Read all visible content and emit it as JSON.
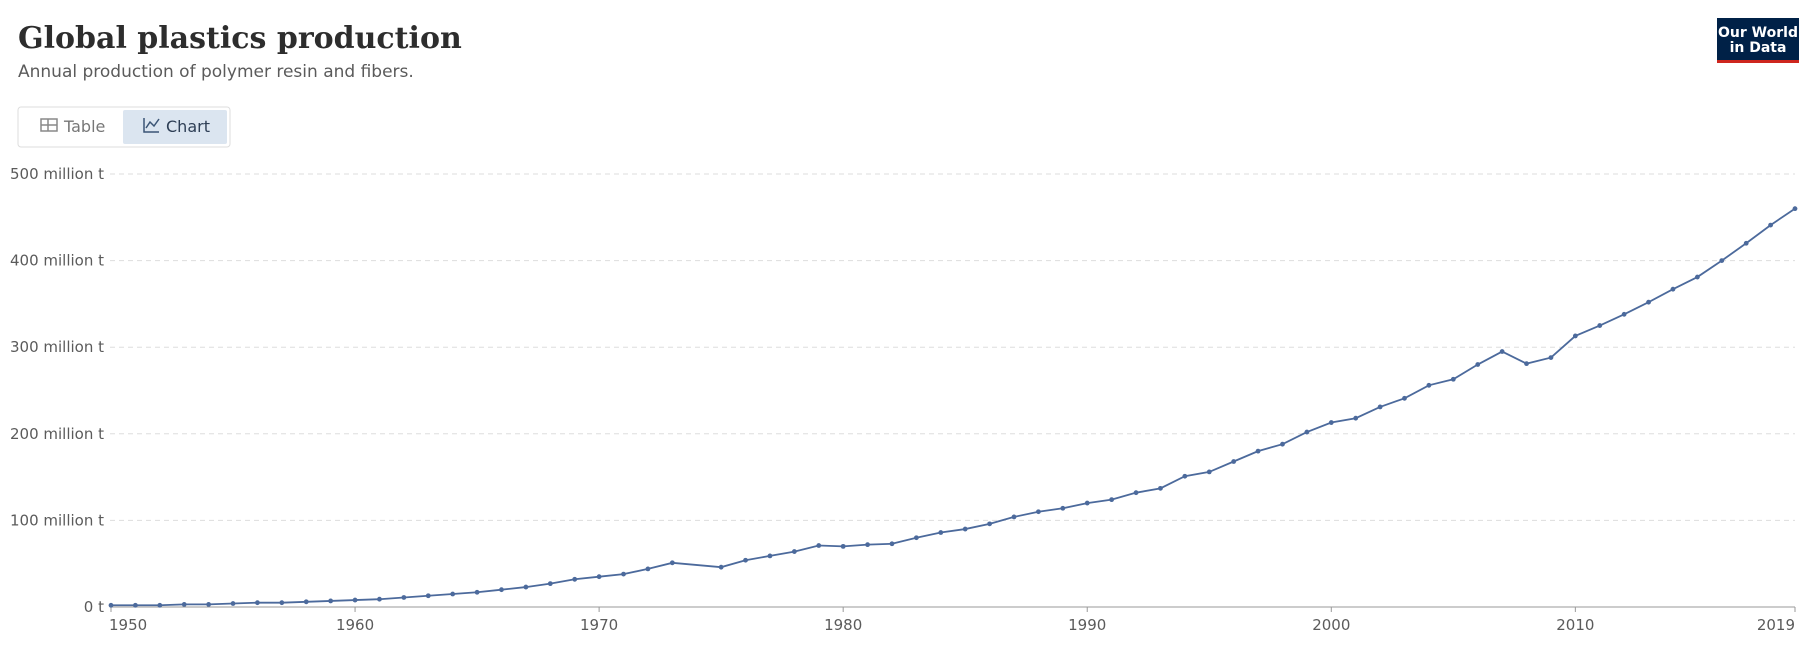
{
  "header": {
    "title": "Global plastics production",
    "subtitle": "Annual production of polymer resin and fibers.",
    "tabs": [
      "Table",
      "Chart"
    ],
    "logo": [
      "Our World",
      "in Data"
    ]
  },
  "chart_data": {
    "type": "line",
    "x": [
      1950,
      1951,
      1952,
      1953,
      1954,
      1955,
      1956,
      1957,
      1958,
      1959,
      1960,
      1961,
      1962,
      1963,
      1964,
      1965,
      1966,
      1967,
      1968,
      1969,
      1970,
      1971,
      1972,
      1973,
      1975,
      1976,
      1977,
      1978,
      1979,
      1980,
      1981,
      1982,
      1983,
      1984,
      1985,
      1986,
      1987,
      1988,
      1989,
      1990,
      1991,
      1992,
      1993,
      1994,
      1995,
      1996,
      1997,
      1998,
      1999,
      2000,
      2001,
      2002,
      2003,
      2004,
      2005,
      2006,
      2007,
      2008,
      2009,
      2010,
      2011,
      2012,
      2013,
      2014,
      2015,
      2016,
      2017,
      2018,
      2019
    ],
    "series": [
      {
        "name": "Global plastics production",
        "color": "#4c6a9c",
        "values": [
          2000000,
          2000000,
          2000000,
          3000000,
          3000000,
          4000000,
          5000000,
          5000000,
          6000000,
          7000000,
          8000000,
          9000000,
          11000000,
          13000000,
          15000000,
          17000000,
          20000000,
          23000000,
          27000000,
          32000000,
          35000000,
          38000000,
          44000000,
          51000000,
          46000000,
          54000000,
          59000000,
          64000000,
          71000000,
          70000000,
          72000000,
          73000000,
          80000000,
          86000000,
          90000000,
          96000000,
          104000000,
          110000000,
          114000000,
          120000000,
          124000000,
          132000000,
          137000000,
          151000000,
          156000000,
          168000000,
          180000000,
          188000000,
          202000000,
          213000000,
          218000000,
          231000000,
          241000000,
          256000000,
          263000000,
          280000000,
          295000000,
          281000000,
          288000000,
          313000000,
          325000000,
          338000000,
          352000000,
          367000000,
          381000000,
          400000000,
          420000000,
          441000000,
          460000000
        ]
      }
    ],
    "xlim": [
      1950,
      2019
    ],
    "xticks": [
      1950,
      1960,
      1970,
      1980,
      1990,
      2000,
      2010,
      2019
    ],
    "ylim": [
      0,
      500000000
    ],
    "yticks": [
      {
        "value": 0,
        "label": "0 t"
      },
      {
        "value": 100000000,
        "label": "100 million t"
      },
      {
        "value": 200000000,
        "label": "200 million t"
      },
      {
        "value": 300000000,
        "label": "300 million t"
      },
      {
        "value": 400000000,
        "label": "400 million t"
      },
      {
        "value": 500000000,
        "label": "500 million t"
      }
    ],
    "grid": true
  }
}
